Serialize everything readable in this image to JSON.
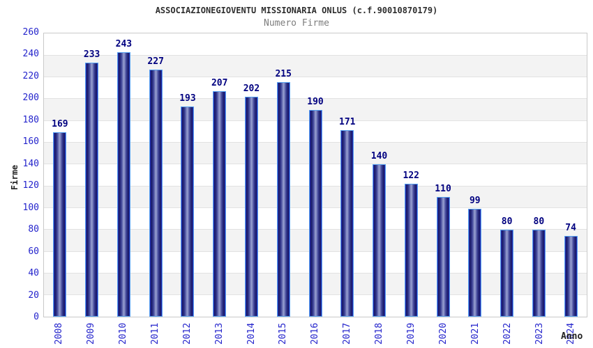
{
  "header": {
    "title": "ASSOCIAZIONEGIOVENTU MISSIONARIA ONLUS (c.f.90010870179)",
    "subtitle": "Numero Firme"
  },
  "chart_data": {
    "type": "bar",
    "title": "ASSOCIAZIONEGIOVENTU MISSIONARIA ONLUS (c.f.90010870179)",
    "subtitle": "Numero Firme",
    "xlabel": "Anno",
    "ylabel": "Firme",
    "categories": [
      "2008",
      "2009",
      "2010",
      "2011",
      "2012",
      "2013",
      "2014",
      "2015",
      "2016",
      "2017",
      "2018",
      "2019",
      "2020",
      "2021",
      "2022",
      "2023",
      "2024"
    ],
    "values": [
      169,
      233,
      243,
      227,
      193,
      207,
      202,
      215,
      190,
      171,
      140,
      122,
      110,
      99,
      80,
      80,
      74
    ],
    "ylim": [
      0,
      260
    ],
    "ytick_step": 20,
    "grid": "horizontal gridlines with alternating white/gray bands",
    "legend": "none",
    "colors": {
      "bar_border": "#55a0f0",
      "bar_edge_blue": "#2a35c8",
      "bar_dark": "#171763",
      "bar_light_center": "#9aa2d2",
      "value_label": "#000080",
      "axis_tick_label": "#2424cc",
      "band_gray": "#f3f3f3",
      "gridline": "#e2e2e2",
      "plot_border": "#c9c9c9",
      "title_text": "#2e2e2e",
      "subtitle_text": "#7d7d7d",
      "axis_title_text": "#222222"
    }
  }
}
